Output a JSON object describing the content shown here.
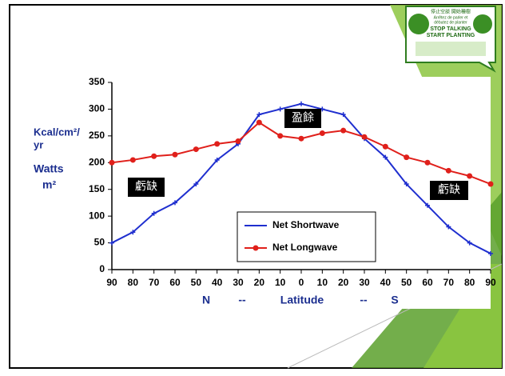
{
  "chart_data": {
    "type": "line",
    "categories": [
      "90",
      "80",
      "70",
      "60",
      "50",
      "40",
      "30",
      "20",
      "10",
      "0",
      "10",
      "20",
      "30",
      "40",
      "50",
      "60",
      "70",
      "80",
      "90"
    ],
    "series": [
      {
        "name": "Net Shortwave",
        "color": "#1f2fcf",
        "marker": "plus",
        "values": [
          50,
          70,
          105,
          125,
          160,
          205,
          235,
          290,
          300,
          310,
          300,
          290,
          245,
          210,
          160,
          120,
          80,
          50,
          30
        ]
      },
      {
        "name": "Net Longwave",
        "color": "#e0201b",
        "marker": "circle",
        "values": [
          200,
          205,
          212,
          215,
          225,
          235,
          240,
          275,
          250,
          245,
          255,
          260,
          248,
          230,
          210,
          200,
          185,
          175,
          160
        ]
      }
    ],
    "ylim": [
      0,
      350
    ],
    "yticks": [
      0,
      50,
      100,
      150,
      200,
      250,
      300,
      350
    ],
    "x_label": [
      "N",
      "--",
      "Latitude",
      "--",
      "S"
    ],
    "y_label": [
      "Kcal/cm²/",
      "yr",
      "Watts",
      "m²"
    ],
    "annotations": [
      "盈餘",
      "虧缺",
      "虧缺"
    ]
  },
  "logo": {
    "line1": "停止空談 開始種樹",
    "line2": "Arrêtez de parler et",
    "line3": "débutez de planter",
    "line4": "STOP TALKING",
    "line5": "START PLANTING"
  }
}
